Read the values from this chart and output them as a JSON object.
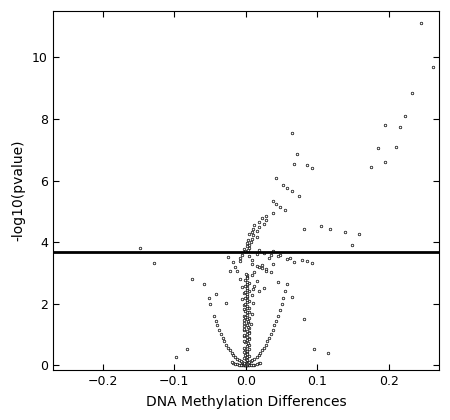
{
  "xlabel": "DNA Methylation Differences",
  "ylabel": "-log10(pvalue)",
  "xlim": [
    -0.27,
    0.27
  ],
  "ylim": [
    -0.15,
    11.5
  ],
  "xticks": [
    -0.2,
    -0.1,
    0.0,
    0.1,
    0.2
  ],
  "yticks": [
    0,
    2,
    4,
    6,
    8,
    10
  ],
  "hline_y": 3.68,
  "hline_color": "black",
  "hline_lw": 2.0,
  "marker_size": 3.5,
  "marker_facecolor": "white",
  "marker_edgecolor": "black",
  "marker_edgewidth": 0.5,
  "background_color": "white",
  "points": [
    [
      0.245,
      11.1
    ],
    [
      0.262,
      9.7
    ],
    [
      0.232,
      8.85
    ],
    [
      0.222,
      8.1
    ],
    [
      0.215,
      7.75
    ],
    [
      0.195,
      7.8
    ],
    [
      0.21,
      7.1
    ],
    [
      0.185,
      7.05
    ],
    [
      0.065,
      7.55
    ],
    [
      0.072,
      6.85
    ],
    [
      0.068,
      6.55
    ],
    [
      0.085,
      6.5
    ],
    [
      0.092,
      6.4
    ],
    [
      0.195,
      6.6
    ],
    [
      0.175,
      6.45
    ],
    [
      0.042,
      6.1
    ],
    [
      0.052,
      5.85
    ],
    [
      0.058,
      5.75
    ],
    [
      0.065,
      5.65
    ],
    [
      0.075,
      5.5
    ],
    [
      0.038,
      5.35
    ],
    [
      0.042,
      5.25
    ],
    [
      0.048,
      5.15
    ],
    [
      0.055,
      5.05
    ],
    [
      0.038,
      4.95
    ],
    [
      0.028,
      4.85
    ],
    [
      0.022,
      4.78
    ],
    [
      0.028,
      4.72
    ],
    [
      0.018,
      4.65
    ],
    [
      0.025,
      4.6
    ],
    [
      0.012,
      4.55
    ],
    [
      0.018,
      4.48
    ],
    [
      0.01,
      4.42
    ],
    [
      0.015,
      4.38
    ],
    [
      0.008,
      4.32
    ],
    [
      0.005,
      4.28
    ],
    [
      0.01,
      4.22
    ],
    [
      0.015,
      4.18
    ],
    [
      0.008,
      4.12
    ],
    [
      0.003,
      4.08
    ],
    [
      0.007,
      4.02
    ],
    [
      0.002,
      3.98
    ],
    [
      0.005,
      3.92
    ],
    [
      0.001,
      3.88
    ],
    [
      0.004,
      3.82
    ],
    [
      -0.002,
      3.78
    ],
    [
      0.003,
      3.74
    ],
    [
      -0.001,
      3.7
    ],
    [
      -0.148,
      3.8
    ],
    [
      0.148,
      3.92
    ],
    [
      0.082,
      4.42
    ],
    [
      0.118,
      4.42
    ],
    [
      0.138,
      4.32
    ],
    [
      0.158,
      4.28
    ],
    [
      0.105,
      4.52
    ],
    [
      -0.005,
      3.6
    ],
    [
      0.005,
      3.55
    ],
    [
      -0.008,
      3.48
    ],
    [
      0.008,
      3.42
    ],
    [
      0.048,
      3.58
    ],
    [
      0.032,
      3.5
    ],
    [
      0.058,
      3.45
    ],
    [
      0.068,
      3.35
    ],
    [
      0.038,
      3.3
    ],
    [
      0.022,
      3.25
    ],
    [
      0.018,
      3.18
    ],
    [
      0.028,
      3.12
    ],
    [
      -0.012,
      3.08
    ],
    [
      0.012,
      3.02
    ],
    [
      0.008,
      2.95
    ],
    [
      0.002,
      2.88
    ],
    [
      -0.008,
      2.82
    ],
    [
      0.015,
      2.75
    ],
    [
      0.005,
      2.68
    ],
    [
      0.002,
      2.62
    ],
    [
      -0.005,
      2.55
    ],
    [
      0.01,
      2.48
    ],
    [
      0.005,
      2.42
    ],
    [
      -0.002,
      2.35
    ],
    [
      0.008,
      2.28
    ],
    [
      0.002,
      2.22
    ],
    [
      -0.005,
      2.15
    ],
    [
      0.005,
      2.08
    ],
    [
      0.01,
      2.02
    ],
    [
      -0.002,
      1.95
    ],
    [
      0.005,
      1.88
    ],
    [
      -0.002,
      1.82
    ],
    [
      0.005,
      1.75
    ],
    [
      0.008,
      1.68
    ],
    [
      -0.003,
      1.62
    ],
    [
      0.005,
      1.55
    ],
    [
      -0.003,
      1.48
    ],
    [
      0.003,
      1.42
    ],
    [
      0.007,
      1.35
    ],
    [
      -0.002,
      1.28
    ],
    [
      0.005,
      1.22
    ],
    [
      -0.003,
      1.15
    ],
    [
      0.004,
      1.08
    ],
    [
      0.001,
      1.02
    ],
    [
      -0.003,
      0.95
    ],
    [
      0.004,
      0.88
    ],
    [
      0.001,
      0.82
    ],
    [
      -0.001,
      0.75
    ],
    [
      0.003,
      0.68
    ],
    [
      0.001,
      0.62
    ],
    [
      -0.001,
      0.55
    ],
    [
      0.002,
      0.48
    ],
    [
      0.001,
      0.42
    ],
    [
      -0.001,
      0.35
    ],
    [
      0.001,
      0.28
    ],
    [
      0.0,
      0.22
    ],
    [
      0.001,
      0.15
    ],
    [
      0.0,
      0.08
    ],
    [
      0.001,
      0.02
    ],
    [
      0.0,
      0.01
    ],
    [
      -0.001,
      0.005
    ],
    [
      0.002,
      0.18
    ],
    [
      0.003,
      0.12
    ],
    [
      -0.002,
      0.25
    ],
    [
      0.004,
      0.32
    ],
    [
      0.002,
      0.38
    ],
    [
      -0.003,
      0.45
    ],
    [
      0.005,
      0.52
    ],
    [
      -0.002,
      0.58
    ],
    [
      0.004,
      0.65
    ],
    [
      0.003,
      0.72
    ],
    [
      -0.002,
      0.78
    ],
    [
      0.005,
      0.85
    ],
    [
      0.002,
      0.92
    ],
    [
      -0.003,
      0.98
    ],
    [
      0.004,
      1.05
    ],
    [
      0.002,
      1.12
    ],
    [
      -0.002,
      1.18
    ],
    [
      0.003,
      1.25
    ],
    [
      0.002,
      1.32
    ],
    [
      -0.002,
      1.38
    ],
    [
      0.003,
      1.45
    ],
    [
      0.001,
      1.52
    ],
    [
      -0.001,
      1.58
    ],
    [
      0.002,
      1.65
    ],
    [
      0.001,
      1.72
    ],
    [
      -0.001,
      1.78
    ],
    [
      0.002,
      1.85
    ],
    [
      0.001,
      1.92
    ],
    [
      -0.001,
      1.98
    ],
    [
      0.002,
      2.05
    ],
    [
      0.001,
      2.12
    ],
    [
      -0.001,
      2.18
    ],
    [
      0.002,
      2.25
    ],
    [
      0.001,
      2.32
    ],
    [
      -0.001,
      2.38
    ],
    [
      0.002,
      2.45
    ],
    [
      0.001,
      2.52
    ],
    [
      -0.001,
      2.58
    ],
    [
      0.002,
      2.65
    ],
    [
      0.001,
      2.72
    ],
    [
      -0.001,
      2.78
    ],
    [
      0.002,
      2.85
    ],
    [
      0.001,
      2.92
    ],
    [
      0.0,
      2.98
    ],
    [
      0.012,
      2.58
    ],
    [
      0.018,
      2.42
    ],
    [
      -0.018,
      3.35
    ],
    [
      -0.128,
      3.32
    ],
    [
      -0.075,
      2.82
    ],
    [
      0.045,
      2.72
    ],
    [
      0.025,
      2.52
    ],
    [
      -0.042,
      2.32
    ],
    [
      0.065,
      2.22
    ],
    [
      -0.028,
      2.02
    ],
    [
      0.082,
      1.52
    ],
    [
      0.095,
      0.55
    ],
    [
      -0.082,
      0.52
    ],
    [
      0.115,
      0.42
    ],
    [
      -0.098,
      0.28
    ],
    [
      0.008,
      0.01
    ],
    [
      -0.008,
      0.02
    ],
    [
      0.012,
      0.03
    ],
    [
      -0.012,
      0.04
    ],
    [
      0.015,
      0.05
    ],
    [
      -0.015,
      0.06
    ],
    [
      0.018,
      0.07
    ],
    [
      -0.018,
      0.08
    ],
    [
      0.02,
      0.09
    ],
    [
      -0.02,
      0.1
    ],
    [
      0.005,
      0.0
    ],
    [
      -0.005,
      0.0
    ],
    [
      0.003,
      0.0
    ],
    [
      -0.003,
      0.0
    ],
    [
      0.001,
      0.0
    ],
    [
      -0.001,
      0.0
    ],
    [
      0.002,
      0.01
    ],
    [
      -0.002,
      0.01
    ],
    [
      0.004,
      0.01
    ],
    [
      -0.004,
      0.01
    ],
    [
      0.007,
      0.01
    ],
    [
      -0.007,
      0.01
    ],
    [
      0.01,
      0.01
    ],
    [
      -0.01,
      0.01
    ],
    [
      0.0,
      0.0
    ],
    [
      0.0,
      0.02
    ],
    [
      0.001,
      0.03
    ],
    [
      -0.001,
      0.03
    ],
    [
      0.002,
      0.05
    ],
    [
      -0.002,
      0.05
    ],
    [
      0.003,
      0.07
    ],
    [
      -0.003,
      0.07
    ],
    [
      0.005,
      0.1
    ],
    [
      -0.005,
      0.1
    ],
    [
      0.007,
      0.13
    ],
    [
      -0.007,
      0.13
    ],
    [
      0.009,
      0.17
    ],
    [
      -0.009,
      0.17
    ],
    [
      0.012,
      0.22
    ],
    [
      -0.012,
      0.22
    ],
    [
      0.015,
      0.28
    ],
    [
      -0.015,
      0.28
    ],
    [
      0.018,
      0.35
    ],
    [
      -0.018,
      0.35
    ],
    [
      0.02,
      0.42
    ],
    [
      -0.02,
      0.42
    ],
    [
      0.022,
      0.5
    ],
    [
      -0.022,
      0.5
    ],
    [
      0.025,
      0.58
    ],
    [
      -0.025,
      0.58
    ],
    [
      0.028,
      0.68
    ],
    [
      -0.028,
      0.68
    ],
    [
      0.03,
      0.78
    ],
    [
      -0.03,
      0.78
    ],
    [
      0.032,
      0.9
    ],
    [
      -0.032,
      0.9
    ],
    [
      0.035,
      1.02
    ],
    [
      -0.035,
      1.02
    ],
    [
      0.038,
      1.15
    ],
    [
      -0.038,
      1.15
    ],
    [
      0.04,
      1.3
    ],
    [
      -0.04,
      1.3
    ],
    [
      0.042,
      1.45
    ],
    [
      -0.042,
      1.45
    ],
    [
      0.045,
      1.62
    ],
    [
      -0.045,
      1.62
    ],
    [
      0.048,
      1.8
    ],
    [
      0.05,
      2.0
    ],
    [
      -0.05,
      2.0
    ],
    [
      0.052,
      2.2
    ],
    [
      -0.052,
      2.2
    ],
    [
      0.055,
      2.42
    ],
    [
      0.058,
      2.65
    ],
    [
      -0.058,
      2.65
    ],
    [
      0.025,
      3.65
    ],
    [
      0.015,
      3.62
    ],
    [
      0.035,
      3.58
    ],
    [
      0.045,
      3.55
    ],
    [
      0.038,
      3.72
    ],
    [
      0.018,
      3.75
    ],
    [
      -0.025,
      3.52
    ],
    [
      0.062,
      3.48
    ],
    [
      0.078,
      3.42
    ],
    [
      0.085,
      3.38
    ],
    [
      0.092,
      3.32
    ],
    [
      -0.008,
      3.38
    ],
    [
      0.008,
      3.28
    ],
    [
      0.015,
      3.22
    ],
    [
      -0.015,
      3.18
    ],
    [
      0.022,
      3.15
    ],
    [
      0.028,
      3.08
    ],
    [
      -0.022,
      3.05
    ],
    [
      0.035,
      3.02
    ]
  ]
}
